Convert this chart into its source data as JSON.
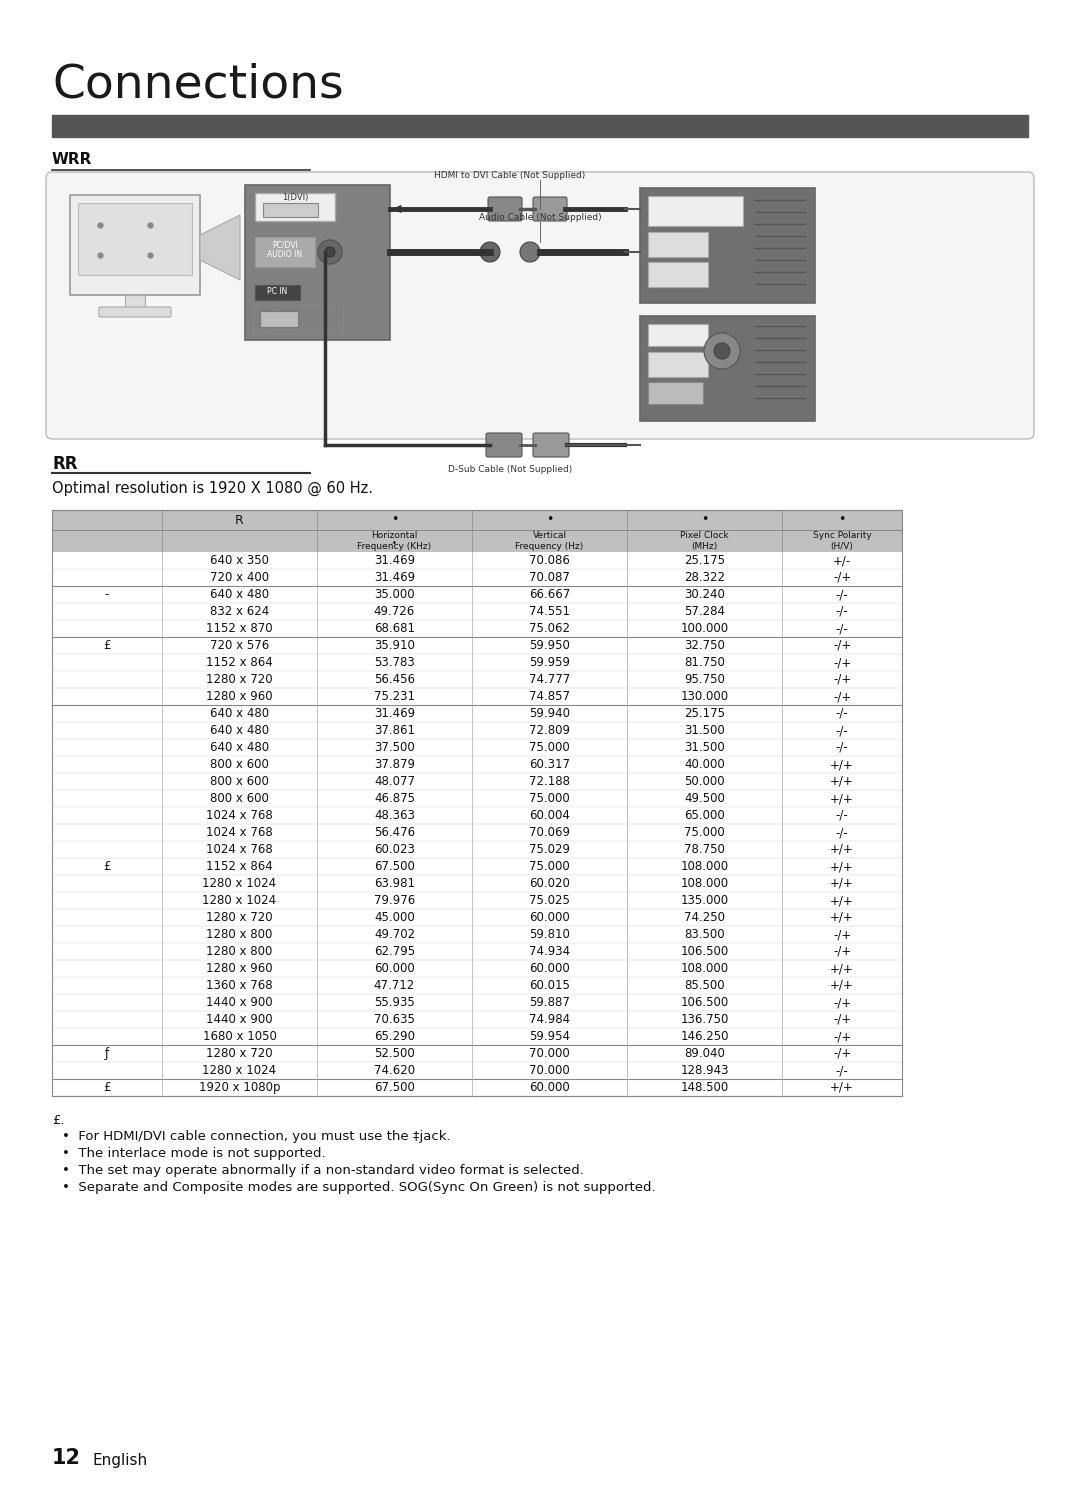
{
  "title": "Connections",
  "dark_bar_color": "#555555",
  "section_title": "WRR",
  "table_section_title": "RR",
  "subtitle": "Optimal resolution is 1920 X 1080 @ 60 Hz.",
  "table_header_bg": "#c0c0c0",
  "table_row_bg": "#ffffff",
  "rows": [
    [
      "",
      "640 x 350",
      "31.469",
      "70.086",
      "25.175",
      "+/-"
    ],
    [
      "",
      "720 x 400",
      "31.469",
      "70.087",
      "28.322",
      "-/+"
    ],
    [
      "-",
      "640 x 480",
      "35.000",
      "66.667",
      "30.240",
      "-/-"
    ],
    [
      "",
      "832 x 624",
      "49.726",
      "74.551",
      "57.284",
      "-/-"
    ],
    [
      "",
      "1152 x 870",
      "68.681",
      "75.062",
      "100.000",
      "-/-"
    ],
    [
      "£",
      "720 x 576",
      "35.910",
      "59.950",
      "32.750",
      "-/+"
    ],
    [
      "",
      "1152 x 864",
      "53.783",
      "59.959",
      "81.750",
      "-/+"
    ],
    [
      "",
      "1280 x 720",
      "56.456",
      "74.777",
      "95.750",
      "-/+"
    ],
    [
      "",
      "1280 x 960",
      "75.231",
      "74.857",
      "130.000",
      "-/+"
    ],
    [
      "",
      "640 x 480",
      "31.469",
      "59.940",
      "25.175",
      "-/-"
    ],
    [
      "",
      "640 x 480",
      "37.861",
      "72.809",
      "31.500",
      "-/-"
    ],
    [
      "",
      "640 x 480",
      "37.500",
      "75.000",
      "31.500",
      "-/-"
    ],
    [
      "",
      "800 x 600",
      "37.879",
      "60.317",
      "40.000",
      "+/+"
    ],
    [
      "",
      "800 x 600",
      "48.077",
      "72.188",
      "50.000",
      "+/+"
    ],
    [
      "",
      "800 x 600",
      "46.875",
      "75.000",
      "49.500",
      "+/+"
    ],
    [
      "",
      "1024 x 768",
      "48.363",
      "60.004",
      "65.000",
      "-/-"
    ],
    [
      "",
      "1024 x 768",
      "56.476",
      "70.069",
      "75.000",
      "-/-"
    ],
    [
      "",
      "1024 x 768",
      "60.023",
      "75.029",
      "78.750",
      "+/+"
    ],
    [
      "£",
      "1152 x 864",
      "67.500",
      "75.000",
      "108.000",
      "+/+"
    ],
    [
      "",
      "1280 x 1024",
      "63.981",
      "60.020",
      "108.000",
      "+/+"
    ],
    [
      "",
      "1280 x 1024",
      "79.976",
      "75.025",
      "135.000",
      "+/+"
    ],
    [
      "",
      "1280 x 720",
      "45.000",
      "60.000",
      "74.250",
      "+/+"
    ],
    [
      "",
      "1280 x 800",
      "49.702",
      "59.810",
      "83.500",
      "-/+"
    ],
    [
      "",
      "1280 x 800",
      "62.795",
      "74.934",
      "106.500",
      "-/+"
    ],
    [
      "",
      "1280 x 960",
      "60.000",
      "60.000",
      "108.000",
      "+/+"
    ],
    [
      "",
      "1360 x 768",
      "47.712",
      "60.015",
      "85.500",
      "+/+"
    ],
    [
      "",
      "1440 x 900",
      "55.935",
      "59.887",
      "106.500",
      "-/+"
    ],
    [
      "",
      "1440 x 900",
      "70.635",
      "74.984",
      "136.750",
      "-/+"
    ],
    [
      "",
      "1680 x 1050",
      "65.290",
      "59.954",
      "146.250",
      "-/+"
    ],
    [
      "ƒ",
      "1280 x 720",
      "52.500",
      "70.000",
      "89.040",
      "-/+"
    ],
    [
      "",
      "1280 x 1024",
      "74.620",
      "70.000",
      "128.943",
      "-/-"
    ],
    [
      "£",
      "1920 x 1080p",
      "67.500",
      "60.000",
      "148.500",
      "+/+"
    ]
  ],
  "group_ends": [
    1,
    4,
    8,
    28,
    30,
    31
  ],
  "footnote_symbol": "£.",
  "footnotes": [
    "For HDMI/DVI cable connection, you must use the ‡jack.",
    "The interlace mode is not supported.",
    "The set may operate abnormally if a non-standard video format is selected.",
    "Separate and Composite modes are supported. SOG(Sync On Green) is not supported."
  ],
  "page_num": "12",
  "page_lang": "English",
  "bg_color": "#ffffff"
}
